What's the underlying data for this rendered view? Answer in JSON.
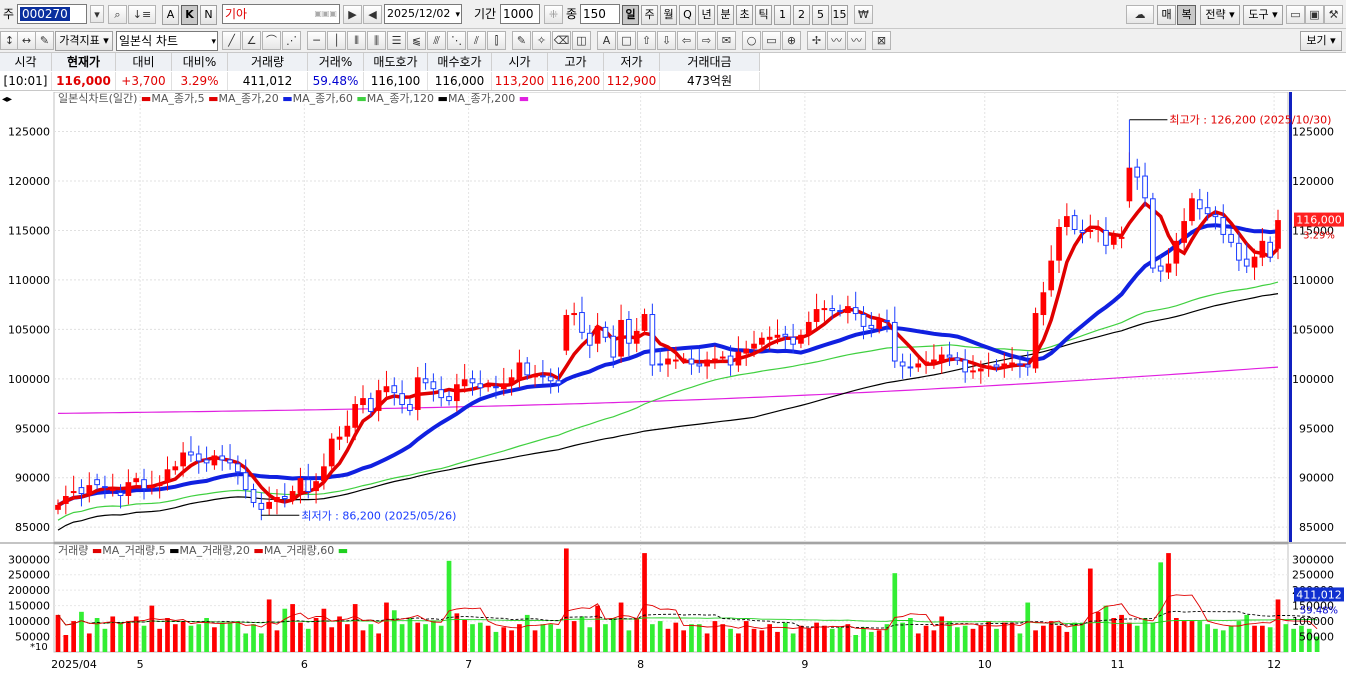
{
  "toolbar": {
    "stock_prefix": "주",
    "stock_code": "000270",
    "mode_a": "A",
    "mode_k": "K",
    "mode_n": "N",
    "stock_name": "기아",
    "date": "2025/12/02",
    "period_label": "기간",
    "period_value": "1000",
    "count_label": "종",
    "count_value": "150",
    "intervals": [
      "일",
      "주",
      "월",
      "Q",
      "년",
      "분",
      "초",
      "틱",
      "1",
      "2",
      "5",
      "15"
    ],
    "selected_interval": "일",
    "right_buttons": [
      "매",
      "복",
      "전략",
      "도구"
    ],
    "row2_dropdown1": "가격지표",
    "row2_dropdown2": "일본식 차트",
    "view_button": "보기"
  },
  "quote": {
    "headers": [
      "시각",
      "현재가",
      "대비",
      "대비%",
      "거래량",
      "거래%",
      "매도호가",
      "매수호가",
      "시가",
      "고가",
      "저가",
      "거래대금"
    ],
    "values": [
      "[10:01]",
      "116,000",
      "+3,700",
      "3.29%",
      "411,012",
      "59.48%",
      "116,100",
      "116,000",
      "113,200",
      "116,200",
      "112,900",
      "473억원"
    ]
  },
  "price_panel": {
    "legend_title": "일본식차트(일간)",
    "ma_legend": [
      {
        "label": "MA_종가,5",
        "color": "#e00000"
      },
      {
        "label": "MA_종가,20",
        "color": "#e00000"
      },
      {
        "label": "MA_종가,60",
        "color": "#1020e0"
      },
      {
        "label": "MA_종가,120",
        "color": "#40d040"
      },
      {
        "label": "MA_종가,200",
        "color": "#000000"
      },
      {
        "label": "",
        "color": "#e020e0"
      }
    ],
    "y_ticks": [
      "125000",
      "120000",
      "115000",
      "110000",
      "105000",
      "100000",
      "95000",
      "90000",
      "85000"
    ],
    "high_annotation": "최고가 : 126,200 (2025/10/30)",
    "low_annotation": "최저가 : 86,200 (2025/05/26)",
    "current_price_tag": "116,000",
    "current_pct_tag": "3.29%"
  },
  "volume_panel": {
    "legend_title": "거래량",
    "ma_legend": [
      {
        "label": "MA_거래량,5",
        "color": "#e00000"
      },
      {
        "label": "MA_거래량,20",
        "color": "#000000"
      },
      {
        "label": "MA_거래량,60",
        "color": "#e00000"
      },
      {
        "label": "",
        "color": "#20d020"
      }
    ],
    "y_ticks": [
      "300000",
      "250000",
      "200000",
      "150000",
      "100000",
      "50000"
    ],
    "unit_label": "*10",
    "current_volume_tag": "411,012",
    "current_pct_tag": "59.48%"
  },
  "x_axis": {
    "labels": [
      "2025/04",
      "5",
      "6",
      "7",
      "8",
      "9",
      "10",
      "11",
      "12"
    ]
  },
  "colors": {
    "up": "#ff0000",
    "down": "#1a3cff",
    "vol_up": "#ff0000",
    "vol_down": "#33ee33",
    "ma5": "#e00000",
    "ma20": "#1020e0",
    "ma60": "#40d040",
    "ma120": "#000000",
    "ma200": "#e020e0"
  },
  "chart_data": {
    "type": "candlestick",
    "price_range": [
      83500,
      129000
    ],
    "volume_range": [
      0,
      330000
    ],
    "month_starts": [
      "2025/04",
      "5",
      "6",
      "7",
      "8",
      "9",
      "10",
      "11",
      "12"
    ],
    "closes": [
      87200,
      88100,
      88600,
      88400,
      89200,
      89300,
      89000,
      88800,
      88200,
      89500,
      89900,
      88900,
      89100,
      89400,
      90800,
      91100,
      92500,
      92300,
      91700,
      91500,
      92200,
      91800,
      91500,
      90600,
      88800,
      87500,
      86800,
      87500,
      88000,
      87900,
      88600,
      89900,
      88600,
      89600,
      91100,
      93900,
      94100,
      95200,
      97400,
      98000,
      96700,
      98800,
      99200,
      98600,
      97400,
      96800,
      100100,
      99600,
      99000,
      98100,
      97800,
      99400,
      99900,
      99600,
      99100,
      99300,
      99100,
      99500,
      100100,
      101600,
      100400,
      100300,
      100200,
      99800,
      99500,
      106400,
      106600,
      104700,
      103400,
      105300,
      104200,
      102200,
      105900,
      103600,
      104800,
      106500,
      101400,
      101400,
      102000,
      101900,
      102000,
      101500,
      101300,
      101900,
      102000,
      102200,
      101400,
      102700,
      103000,
      103500,
      104100,
      104200,
      104400,
      104300,
      103500,
      104400,
      105700,
      107000,
      107100,
      106900,
      106800,
      107300,
      106600,
      105300,
      105100,
      106000,
      105800,
      101800,
      101300,
      101100,
      101500,
      101700,
      101900,
      102400,
      102200,
      101900,
      100700,
      100800,
      101000,
      101300,
      101200,
      101500,
      101600,
      101400,
      101200,
      106600,
      108700,
      111900,
      115300,
      116400,
      115100,
      114800,
      115000,
      115200,
      113500,
      114400,
      114300,
      121300,
      120400,
      118300,
      111200,
      110900,
      111600,
      113900,
      115900,
      118200,
      117200,
      116700,
      116400,
      114600,
      113800,
      112000,
      111400,
      112300,
      113900,
      112300,
      116000
    ],
    "opens": [
      86800,
      87400,
      88500,
      89000,
      88400,
      89800,
      89100,
      88800,
      88500,
      88200,
      89600,
      89800,
      89000,
      89200,
      89600,
      90800,
      91200,
      92600,
      92400,
      91800,
      91300,
      92200,
      91800,
      91400,
      90500,
      88800,
      87400,
      86900,
      87600,
      88100,
      87800,
      88500,
      89800,
      88700,
      89700,
      91200,
      93900,
      94200,
      95100,
      97400,
      98000,
      96800,
      98700,
      99300,
      98500,
      97400,
      96900,
      100000,
      99700,
      98900,
      98200,
      97800,
      99300,
      100000,
      99500,
      99200,
      99200,
      99000,
      99600,
      100000,
      101600,
      100300,
      100300,
      100200,
      99800,
      102900,
      106500,
      106700,
      104600,
      103600,
      105200,
      104300,
      102300,
      106000,
      103600,
      104900,
      106500,
      101500,
      101500,
      101900,
      102000,
      102000,
      101500,
      101300,
      101900,
      102100,
      102300,
      101400,
      102600,
      103100,
      103500,
      104000,
      104200,
      104500,
      104200,
      103600,
      104500,
      105800,
      107100,
      107100,
      106900,
      106700,
      107200,
      106500,
      105400,
      105100,
      105900,
      105700,
      101700,
      101200,
      101200,
      101600,
      101700,
      101800,
      102400,
      102100,
      101900,
      100700,
      100800,
      101100,
      101400,
      101200,
      101500,
      101500,
      101400,
      101100,
      106500,
      109000,
      112000,
      115400,
      116500,
      115000,
      114900,
      115100,
      115000,
      113600,
      114300,
      118000,
      121400,
      120500,
      118200,
      111400,
      110800,
      111700,
      113800,
      116000,
      118100,
      117300,
      116600,
      116300,
      114600,
      113700,
      112100,
      111300,
      112300,
      113800,
      113200
    ],
    "volumes": [
      120000,
      55000,
      100000,
      130000,
      60000,
      110000,
      75000,
      115000,
      95000,
      100000,
      115000,
      85000,
      150000,
      75000,
      110000,
      90000,
      100000,
      85000,
      90000,
      110000,
      80000,
      95000,
      95000,
      100000,
      60000,
      90000,
      60000,
      170000,
      70000,
      140000,
      155000,
      95000,
      75000,
      110000,
      140000,
      80000,
      115000,
      90000,
      155000,
      70000,
      90000,
      60000,
      160000,
      135000,
      90000,
      110000,
      95000,
      90000,
      100000,
      85000,
      295000,
      125000,
      105000,
      90000,
      95000,
      85000,
      65000,
      80000,
      70000,
      90000,
      120000,
      70000,
      90000,
      90000,
      75000,
      335000,
      100000,
      115000,
      80000,
      150000,
      90000,
      110000,
      160000,
      70000,
      110000,
      320000,
      90000,
      100000,
      75000,
      95000,
      70000,
      90000,
      90000,
      60000,
      100000,
      90000,
      75000,
      60000,
      100000,
      75000,
      70000,
      90000,
      65000,
      95000,
      60000,
      85000,
      75000,
      95000,
      85000,
      75000,
      80000,
      90000,
      55000,
      80000,
      65000,
      70000,
      90000,
      255000,
      95000,
      110000,
      60000,
      85000,
      70000,
      115000,
      100000,
      80000,
      85000,
      75000,
      85000,
      100000,
      75000,
      95000,
      95000,
      60000,
      160000,
      70000,
      85000,
      100000,
      85000,
      65000,
      95000,
      95000,
      270000,
      130000,
      150000,
      110000,
      120000,
      95000,
      85000,
      110000,
      95000,
      290000,
      320000,
      110000,
      100000,
      100000,
      100000,
      90000,
      75000,
      70000,
      85000,
      100000,
      120000,
      85000,
      85000,
      80000,
      170000,
      90000,
      75000,
      85000,
      75000,
      50000
    ]
  }
}
